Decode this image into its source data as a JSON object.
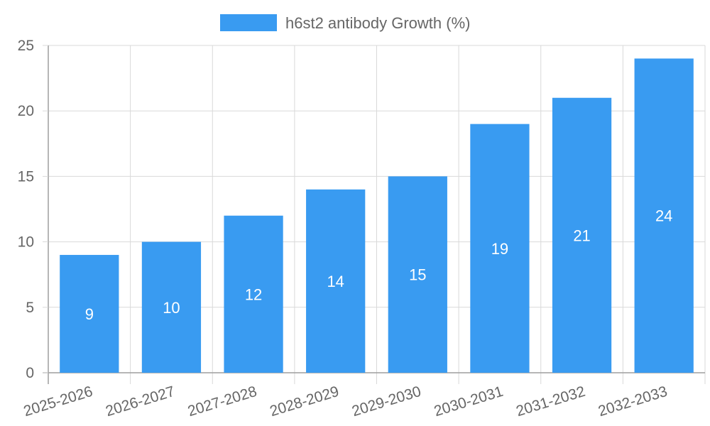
{
  "chart_data": {
    "type": "bar",
    "title": "",
    "xlabel": "",
    "ylabel": "",
    "categories": [
      "2025-2026",
      "2026-2027",
      "2027-2028",
      "2028-2029",
      "2029-2030",
      "2030-2031",
      "2031-2032",
      "2032-2033"
    ],
    "series": [
      {
        "name": "h6st2 antibody Growth (%)",
        "values": [
          9,
          10,
          12,
          14,
          15,
          19,
          21,
          24
        ]
      }
    ],
    "ylim": [
      0,
      25
    ],
    "yticks": [
      "0",
      "5",
      "10",
      "15",
      "20",
      "25"
    ],
    "grid": true,
    "legend_position": "top",
    "data_labels": true,
    "colors": {
      "bar": "#399bf1",
      "bar_label": "#ffffff"
    }
  }
}
